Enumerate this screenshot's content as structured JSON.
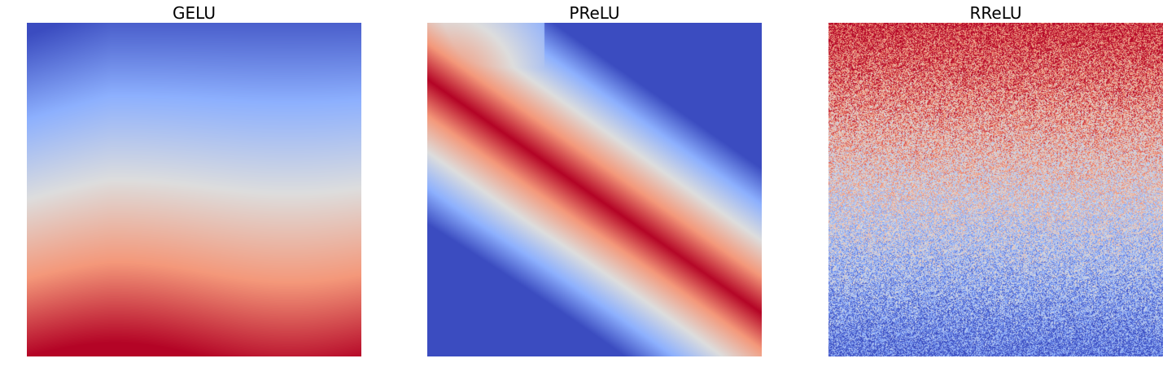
{
  "chart_data": [
    {
      "type": "heatmap",
      "title": "GELU",
      "colormap": "coolwarm",
      "axes_visible": false,
      "grid": false,
      "legend": "none",
      "colors": {
        "low": "#3b4cc0",
        "mid": "#dddddd",
        "high": "#b40426"
      },
      "pattern": "vertical gradient: low values at top, high values at bottom, slight darkening in upper-left corner"
    },
    {
      "type": "heatmap",
      "title": "PReLU",
      "colormap": "coolwarm",
      "axes_visible": false,
      "grid": false,
      "legend": "none",
      "colors": {
        "low": "#3b4cc0",
        "mid": "#dddddd",
        "high": "#b40426"
      },
      "pattern": "high values along the main diagonal from top-left to bottom-right, low values toward bottom-left and top-right corners"
    },
    {
      "type": "heatmap",
      "title": "RReLU",
      "colormap": "coolwarm",
      "axes_visible": false,
      "grid": false,
      "legend": "none",
      "colors": {
        "low": "#3b4cc0",
        "mid": "#dddddd",
        "high": "#b40426"
      },
      "pattern": "noisy vertical gradient: high values at top, low values at bottom, strong per-pixel noise"
    }
  ]
}
